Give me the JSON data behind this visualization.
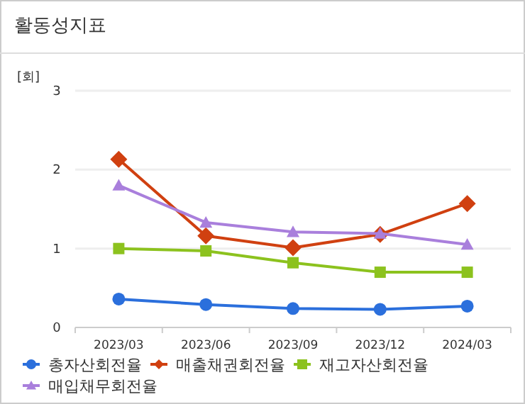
{
  "chart_data": {
    "type": "line",
    "title": "활동성지표",
    "ylabel": "[회]",
    "categories": [
      "2023/03",
      "2023/06",
      "2023/09",
      "2023/12",
      "2024/03"
    ],
    "ylim": [
      0,
      3
    ],
    "yticks": [
      0,
      1,
      2,
      3
    ],
    "grid": "y",
    "legend": "bottom",
    "series": [
      {
        "name": "총자산회전율",
        "color": "#2b6fdc",
        "marker": "circle",
        "values": [
          0.36,
          0.29,
          0.24,
          0.23,
          0.27
        ]
      },
      {
        "name": "매출채권회전율",
        "color": "#d04010",
        "marker": "diamond",
        "values": [
          2.13,
          1.16,
          1.01,
          1.18,
          1.57
        ]
      },
      {
        "name": "재고자산회전율",
        "color": "#8cc21e",
        "marker": "square",
        "values": [
          1.0,
          0.97,
          0.82,
          0.7,
          0.7
        ]
      },
      {
        "name": "매입채무회전율",
        "color": "#a97fdc",
        "marker": "triangle",
        "values": [
          1.8,
          1.33,
          1.21,
          1.19,
          1.05
        ]
      }
    ]
  }
}
